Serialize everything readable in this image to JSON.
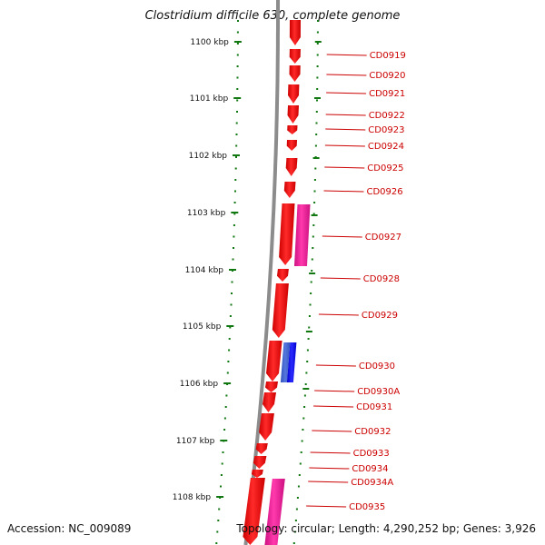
{
  "title": "Clostridium difficile 630, complete genome",
  "footer": {
    "accession": "Accession: NC_009089",
    "summary": "Topology: circular; Length: 4,290,252 bp; Genes: 3,926"
  },
  "ruler_ticks": [
    "1100 kbp",
    "1101 kbp",
    "1102 kbp",
    "1103 kbp",
    "1104 kbp",
    "1105 kbp",
    "1106 kbp",
    "1107 kbp",
    "1108 kbp"
  ],
  "genes": [
    {
      "label": "CD0919"
    },
    {
      "label": "CD0920"
    },
    {
      "label": "CD0921"
    },
    {
      "label": "CD0922"
    },
    {
      "label": "CD0923"
    },
    {
      "label": "CD0924"
    },
    {
      "label": "CD0925"
    },
    {
      "label": "CD0926"
    },
    {
      "label": "CD0927"
    },
    {
      "label": "CD0928"
    },
    {
      "label": "CD0929"
    },
    {
      "label": "CD0930"
    },
    {
      "label": "CD0930A"
    },
    {
      "label": "CD0931"
    },
    {
      "label": "CD0932"
    },
    {
      "label": "CD0933"
    },
    {
      "label": "CD0934"
    },
    {
      "label": "CD0934A"
    },
    {
      "label": "CD0935"
    }
  ],
  "colors": {
    "backbone": "#8c8c8c",
    "cds": "#ff0000",
    "rna_pink": "#ff1a9c",
    "rna_blue": "#1a1aff",
    "label": "#cc0000",
    "ruler": "#117711"
  }
}
